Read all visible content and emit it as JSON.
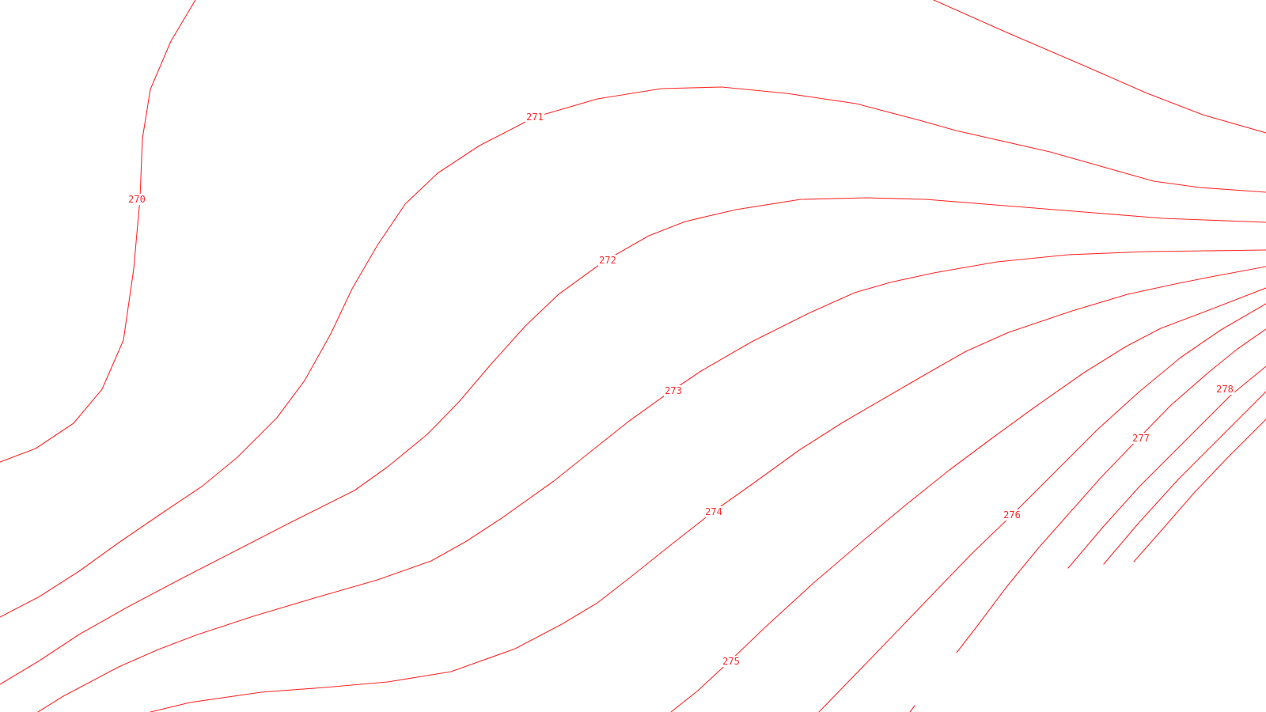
{
  "map": {
    "background_color": "#ffffff",
    "contour_color": "#ff2a2a",
    "contours": [
      {
        "id": "c270",
        "label": "270"
      },
      {
        "id": "c271",
        "label": "271"
      },
      {
        "id": "c272",
        "label": "272"
      },
      {
        "id": "c273",
        "label": "273"
      },
      {
        "id": "c274",
        "label": "274"
      },
      {
        "id": "c275",
        "label": "275"
      },
      {
        "id": "c276",
        "label": "276"
      },
      {
        "id": "c277",
        "label": "277"
      },
      {
        "id": "c278",
        "label": "278"
      },
      {
        "id": "c279",
        "label": ""
      },
      {
        "id": "c280",
        "label": ""
      },
      {
        "id": "c281",
        "label": ""
      },
      {
        "id": "c282",
        "label": ""
      },
      {
        "id": "c283",
        "label": ""
      },
      {
        "id": "c284",
        "label": ""
      },
      {
        "id": "c285",
        "label": ""
      }
    ]
  }
}
